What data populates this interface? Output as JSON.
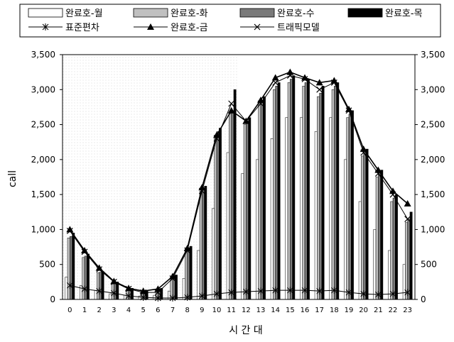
{
  "chart_data": {
    "type": "bar",
    "xlabel": "시 간 대",
    "ylabel": "call",
    "ylim": [
      0,
      3500
    ],
    "yticks": [
      "0",
      "500",
      "1,000",
      "1,500",
      "2,000",
      "2,500",
      "3,000",
      "3,500"
    ],
    "categories": [
      "0",
      "1",
      "2",
      "3",
      "4",
      "5",
      "6",
      "7",
      "8",
      "9",
      "10",
      "11",
      "12",
      "13",
      "14",
      "15",
      "16",
      "17",
      "18",
      "19",
      "20",
      "21",
      "22",
      "23"
    ],
    "legend_position": "top",
    "bar_series": [
      {
        "name": "완료호-월",
        "fill": "#ffffff",
        "values": [
          320,
          200,
          130,
          80,
          60,
          50,
          60,
          120,
          300,
          700,
          1300,
          2100,
          1800,
          2000,
          2300,
          2600,
          2600,
          2400,
          2600,
          2000,
          1400,
          1000,
          700,
          500
        ]
      },
      {
        "name": "완료호-화",
        "fill": "#c0c0c0",
        "values": [
          880,
          600,
          380,
          220,
          140,
          110,
          140,
          320,
          720,
          1550,
          2350,
          2650,
          2500,
          2800,
          3000,
          3100,
          3050,
          2900,
          3000,
          2600,
          2050,
          1750,
          1400,
          1100
        ]
      },
      {
        "name": "완료호-수",
        "fill": "#7a7a7a",
        "values": [
          900,
          620,
          390,
          230,
          150,
          120,
          150,
          340,
          740,
          1580,
          2400,
          2700,
          2550,
          2850,
          3050,
          3150,
          3100,
          2950,
          3050,
          2650,
          2100,
          1800,
          1450,
          1150
        ]
      },
      {
        "name": "완료호-목",
        "fill": "#000000",
        "values": [
          950,
          650,
          400,
          250,
          160,
          130,
          160,
          350,
          760,
          1620,
          2450,
          3000,
          2600,
          2900,
          3100,
          3200,
          3150,
          3050,
          3100,
          2700,
          2150,
          1850,
          1500,
          1250
        ]
      }
    ],
    "line_series": [
      {
        "name": "표준편차",
        "marker": "asterisk",
        "values": [
          200,
          150,
          120,
          90,
          50,
          30,
          20,
          20,
          30,
          50,
          80,
          100,
          110,
          120,
          130,
          130,
          130,
          120,
          130,
          100,
          80,
          70,
          80,
          100
        ]
      },
      {
        "name": "완료호-금",
        "marker": "triangle",
        "values": [
          1000,
          700,
          450,
          260,
          160,
          120,
          150,
          330,
          730,
          1600,
          2350,
          2700,
          2550,
          2850,
          3170,
          3250,
          3170,
          3100,
          3130,
          2720,
          2150,
          1850,
          1550,
          1370
        ]
      },
      {
        "name": "트래픽모델",
        "marker": "x",
        "values": [
          980,
          680,
          430,
          250,
          150,
          100,
          100,
          300,
          700,
          1550,
          2300,
          2800,
          2550,
          2800,
          3100,
          3200,
          3150,
          3000,
          3100,
          2700,
          2100,
          1800,
          1500,
          1150
        ]
      }
    ]
  }
}
